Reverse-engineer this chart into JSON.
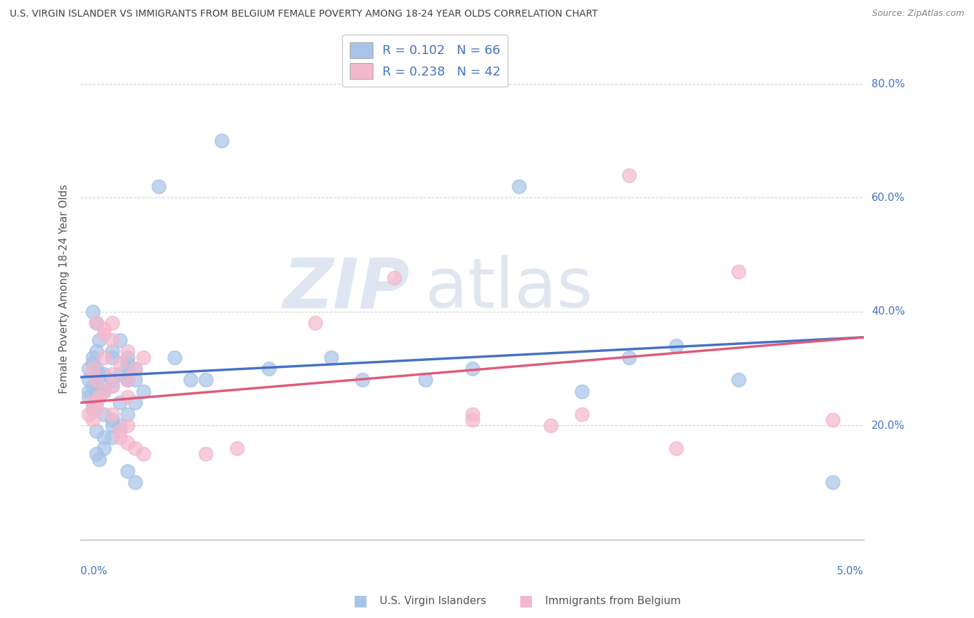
{
  "title": "U.S. VIRGIN ISLANDER VS IMMIGRANTS FROM BELGIUM FEMALE POVERTY AMONG 18-24 YEAR OLDS CORRELATION CHART",
  "source": "Source: ZipAtlas.com",
  "ylabel": "Female Poverty Among 18-24 Year Olds",
  "watermark_zip": "ZIP",
  "watermark_atlas": "atlas",
  "xmin": 0.0,
  "xmax": 0.05,
  "ymin": 0.0,
  "ymax": 0.88,
  "blue_color": "#a8c4e8",
  "pink_color": "#f4b8cc",
  "blue_line_color": "#4472c4",
  "pink_line_color": "#e05a7a",
  "title_color": "#404040",
  "source_color": "#808080",
  "axis_label_color": "#4472c4",
  "grid_color": "#cccccc",
  "right_ytick_labels": [
    "20.0%",
    "40.0%",
    "60.0%",
    "80.0%"
  ],
  "right_ytick_values": [
    0.2,
    0.4,
    0.6,
    0.8
  ],
  "legend_blue_label": "R = 0.102   N = 66",
  "legend_pink_label": "R = 0.238   N = 42",
  "blue_x": [
    0.0005,
    0.0008,
    0.001,
    0.0012,
    0.0015,
    0.002,
    0.0008,
    0.001,
    0.0015,
    0.002,
    0.0005,
    0.001,
    0.0015,
    0.001,
    0.0005,
    0.0008,
    0.001,
    0.0012,
    0.001,
    0.0008,
    0.0015,
    0.002,
    0.0025,
    0.003,
    0.002,
    0.0015,
    0.001,
    0.0008,
    0.0005,
    0.001,
    0.002,
    0.0025,
    0.003,
    0.003,
    0.0035,
    0.002,
    0.0025,
    0.003,
    0.003,
    0.0035,
    0.001,
    0.0012,
    0.0015,
    0.002,
    0.0025,
    0.003,
    0.0035,
    0.004,
    0.003,
    0.0035,
    0.028,
    0.016,
    0.022,
    0.038,
    0.048,
    0.042,
    0.035,
    0.025,
    0.018,
    0.032,
    0.008,
    0.012,
    0.006,
    0.009,
    0.005,
    0.007
  ],
  "blue_y": [
    0.28,
    0.27,
    0.26,
    0.29,
    0.27,
    0.28,
    0.31,
    0.3,
    0.29,
    0.32,
    0.25,
    0.24,
    0.26,
    0.28,
    0.3,
    0.32,
    0.33,
    0.35,
    0.38,
    0.4,
    0.22,
    0.21,
    0.24,
    0.28,
    0.2,
    0.18,
    0.19,
    0.23,
    0.26,
    0.25,
    0.27,
    0.29,
    0.31,
    0.28,
    0.3,
    0.33,
    0.35,
    0.32,
    0.3,
    0.28,
    0.15,
    0.14,
    0.16,
    0.18,
    0.2,
    0.22,
    0.24,
    0.26,
    0.12,
    0.1,
    0.62,
    0.32,
    0.28,
    0.34,
    0.1,
    0.28,
    0.32,
    0.3,
    0.28,
    0.26,
    0.28,
    0.3,
    0.32,
    0.7,
    0.62,
    0.28
  ],
  "pink_x": [
    0.0005,
    0.001,
    0.0015,
    0.001,
    0.0008,
    0.0012,
    0.002,
    0.0015,
    0.001,
    0.0008,
    0.002,
    0.0025,
    0.003,
    0.002,
    0.0015,
    0.001,
    0.0008,
    0.002,
    0.003,
    0.0025,
    0.003,
    0.0035,
    0.004,
    0.003,
    0.0035,
    0.004,
    0.003,
    0.0025,
    0.002,
    0.0015,
    0.02,
    0.015,
    0.025,
    0.03,
    0.035,
    0.025,
    0.038,
    0.048,
    0.042,
    0.032,
    0.01,
    0.008
  ],
  "pink_y": [
    0.22,
    0.24,
    0.26,
    0.28,
    0.3,
    0.25,
    0.27,
    0.32,
    0.23,
    0.21,
    0.29,
    0.31,
    0.33,
    0.35,
    0.37,
    0.38,
    0.24,
    0.22,
    0.2,
    0.18,
    0.28,
    0.3,
    0.32,
    0.25,
    0.16,
    0.15,
    0.17,
    0.19,
    0.38,
    0.36,
    0.46,
    0.38,
    0.21,
    0.2,
    0.64,
    0.22,
    0.16,
    0.21,
    0.47,
    0.22,
    0.16,
    0.15
  ]
}
